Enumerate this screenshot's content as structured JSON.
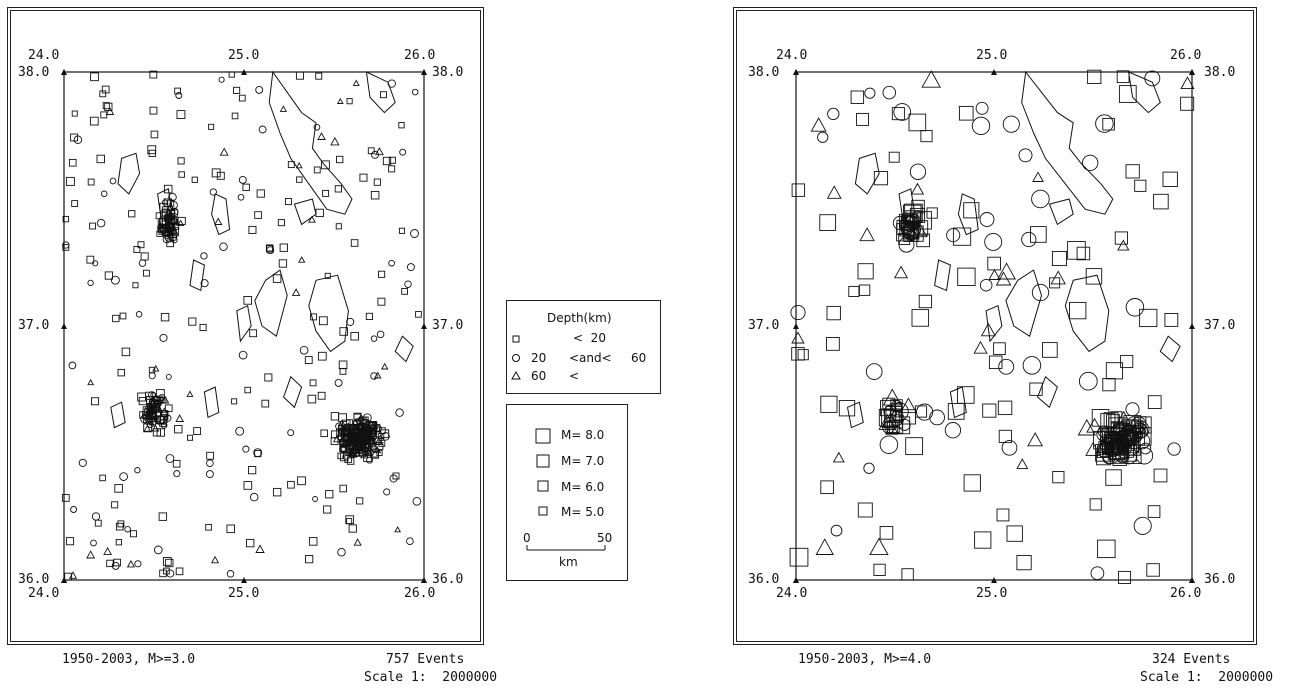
{
  "maps": [
    {
      "id": "left",
      "footer_left": "1950-2003, M>=3.0",
      "footer_events": "757 Events",
      "footer_scale": "Scale 1:  2000000",
      "x_ticks": [
        "24.0",
        "25.0",
        "26.0"
      ],
      "y_ticks": [
        "38.0",
        "37.0",
        "36.0"
      ],
      "lon_range": [
        24.0,
        26.0
      ],
      "lat_range": [
        36.0,
        38.0
      ]
    },
    {
      "id": "right",
      "footer_left": "1950-2003, M>=4.0",
      "footer_events": "324 Events",
      "footer_scale": "Scale 1:  2000000",
      "x_ticks": [
        "24.0",
        "25.0",
        "26.0"
      ],
      "y_ticks": [
        "38.0",
        "37.0",
        "36.0"
      ],
      "lon_range": [
        24.0,
        26.0
      ],
      "lat_range": [
        36.0,
        38.0
      ]
    }
  ],
  "legend_depth": {
    "title": "Depth(km)",
    "row1": "<  20",
    "row2_left": "20",
    "row2_mid": "<and<",
    "row2_right": "60",
    "row3_left": "60",
    "row3_mid": "<"
  },
  "legend_magnitude": {
    "items": [
      "M= 8.0",
      "M= 7.0",
      "M= 6.0",
      "M= 5.0"
    ],
    "scale_start": "0",
    "scale_end": "50",
    "scale_unit": "km"
  }
}
